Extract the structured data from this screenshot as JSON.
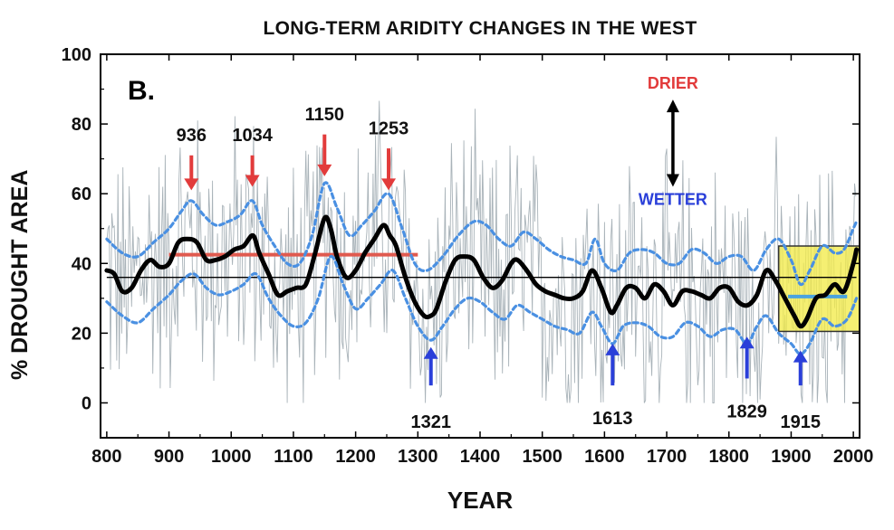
{
  "chart_data": {
    "type": "line",
    "title": "LONG-TERM ARIDITY CHANGES IN THE WEST",
    "panel_label": "B.",
    "xlabel": "YEAR",
    "ylabel": "% DROUGHT AREA",
    "xlim": [
      790,
      2010
    ],
    "ylim": [
      -10,
      100
    ],
    "x_ticks": [
      800,
      900,
      1000,
      1100,
      1200,
      1300,
      1400,
      1500,
      1600,
      1700,
      1800,
      1900,
      2000
    ],
    "y_ticks": [
      0,
      20,
      40,
      60,
      80,
      100
    ],
    "grid": false,
    "series": [
      {
        "role": "smoothed",
        "color": "#000000",
        "x": [
          800,
          812,
          825,
          840,
          855,
          870,
          885,
          900,
          915,
          930,
          945,
          960,
          975,
          990,
          1005,
          1020,
          1035,
          1045,
          1060,
          1075,
          1090,
          1105,
          1120,
          1135,
          1150,
          1160,
          1170,
          1185,
          1200,
          1215,
          1230,
          1245,
          1255,
          1265,
          1280,
          1295,
          1310,
          1321,
          1330,
          1345,
          1360,
          1375,
          1390,
          1405,
          1420,
          1435,
          1450,
          1460,
          1475,
          1490,
          1505,
          1520,
          1535,
          1550,
          1565,
          1580,
          1595,
          1610,
          1620,
          1635,
          1650,
          1665,
          1680,
          1695,
          1710,
          1725,
          1740,
          1755,
          1770,
          1785,
          1800,
          1815,
          1830,
          1845,
          1860,
          1875,
          1890,
          1905,
          1915,
          1925,
          1940,
          1955,
          1970,
          1985,
          2000,
          2005
        ],
        "y": [
          38,
          37,
          32,
          33,
          38,
          41,
          39,
          40,
          46,
          47,
          46,
          41,
          41,
          42,
          44,
          45,
          48,
          43,
          37,
          31,
          32,
          33,
          34,
          43,
          53,
          50,
          42,
          36,
          38,
          43,
          47,
          51,
          48,
          45,
          36,
          29,
          25,
          25,
          27,
          35,
          41,
          42,
          41,
          36,
          33,
          35,
          40,
          41,
          38,
          34,
          32,
          31,
          30,
          30,
          32,
          38,
          33,
          26,
          28,
          33,
          33,
          30,
          34,
          32,
          28,
          32,
          32,
          31,
          30,
          33,
          33,
          29,
          28,
          31,
          38,
          35,
          30,
          25,
          22,
          24,
          30,
          31,
          34,
          32,
          40,
          44
        ]
      },
      {
        "role": "upper-band",
        "color": "#4a90e2",
        "x": [
          800,
          825,
          850,
          875,
          900,
          920,
          936,
          955,
          975,
          995,
          1015,
          1034,
          1050,
          1070,
          1090,
          1110,
          1130,
          1150,
          1170,
          1190,
          1210,
          1230,
          1253,
          1275,
          1295,
          1315,
          1340,
          1365,
          1390,
          1410,
          1430,
          1450,
          1470,
          1490,
          1510,
          1530,
          1550,
          1570,
          1585,
          1600,
          1620,
          1640,
          1660,
          1680,
          1700,
          1720,
          1740,
          1760,
          1780,
          1800,
          1820,
          1840,
          1860,
          1880,
          1900,
          1915,
          1930,
          1950,
          1970,
          1985,
          2000,
          2005
        ],
        "y": [
          47,
          43,
          42,
          46,
          50,
          55,
          58,
          54,
          51,
          52,
          54,
          58,
          51,
          45,
          40,
          40,
          48,
          63,
          56,
          48,
          51,
          55,
          60,
          50,
          40,
          38,
          42,
          48,
          52,
          51,
          47,
          45,
          49,
          47,
          44,
          42,
          41,
          40,
          47,
          40,
          38,
          43,
          44,
          43,
          40,
          40,
          44,
          43,
          40,
          42,
          42,
          38,
          44,
          47,
          41,
          34,
          38,
          45,
          43,
          44,
          50,
          52
        ]
      },
      {
        "role": "lower-band",
        "color": "#4a90e2",
        "x": [
          800,
          825,
          850,
          875,
          900,
          920,
          940,
          960,
          980,
          1000,
          1020,
          1040,
          1060,
          1080,
          1100,
          1120,
          1140,
          1160,
          1180,
          1200,
          1220,
          1240,
          1260,
          1280,
          1300,
          1321,
          1340,
          1360,
          1380,
          1400,
          1420,
          1440,
          1460,
          1480,
          1500,
          1520,
          1540,
          1560,
          1580,
          1595,
          1613,
          1630,
          1650,
          1670,
          1690,
          1710,
          1730,
          1750,
          1770,
          1790,
          1810,
          1829,
          1845,
          1860,
          1880,
          1900,
          1915,
          1930,
          1950,
          1970,
          1990,
          2005
        ],
        "y": [
          29,
          25,
          23,
          27,
          31,
          35,
          37,
          33,
          31,
          32,
          34,
          37,
          30,
          25,
          22,
          23,
          30,
          42,
          34,
          27,
          30,
          34,
          38,
          30,
          22,
          18,
          22,
          27,
          30,
          29,
          26,
          24,
          28,
          26,
          24,
          22,
          21,
          20,
          26,
          22,
          17,
          22,
          23,
          22,
          19,
          19,
          23,
          22,
          19,
          21,
          21,
          17,
          22,
          25,
          20,
          17,
          14,
          17,
          24,
          22,
          24,
          30
        ]
      }
    ],
    "noise_band": {
      "color": "#9aa6ad",
      "low": 0,
      "high": 88,
      "step_years": 2
    },
    "reference_lines": [
      {
        "name": "long-term-mean",
        "color": "#000000",
        "x": [
          800,
          2005
        ],
        "y": 36
      },
      {
        "name": "medieval-mean",
        "color": "#e05a4f",
        "x": [
          900,
          1300
        ],
        "y": 42.5
      },
      {
        "name": "modern-mean",
        "color": "#4aa3df",
        "x": [
          1895,
          1990
        ],
        "y": 30.5
      }
    ],
    "highlight": {
      "color": "#f2ea4a",
      "x": [
        1880,
        2010
      ],
      "y": [
        20.5,
        45
      ]
    },
    "axis_indicator": {
      "top_label": "DRIER",
      "top_color": "#e23b3b",
      "bottom_label": "WETTER",
      "bottom_color": "#2a3fd9",
      "x": 1710,
      "y_top": 87,
      "y_bottom": 62
    },
    "annotations": [
      {
        "label": "936",
        "x": 936,
        "direction": "down",
        "color": "#e23b3b",
        "arrow_from": 71,
        "arrow_to": 61,
        "label_y": 74
      },
      {
        "label": "1034",
        "x": 1034,
        "direction": "down",
        "color": "#e23b3b",
        "arrow_from": 71,
        "arrow_to": 62,
        "label_y": 74
      },
      {
        "label": "1150",
        "x": 1150,
        "direction": "down",
        "color": "#e23b3b",
        "arrow_from": 77,
        "arrow_to": 65,
        "label_y": 80
      },
      {
        "label": "1253",
        "x": 1253,
        "direction": "down",
        "color": "#e23b3b",
        "arrow_from": 73,
        "arrow_to": 61,
        "label_y": 76
      },
      {
        "label": "1321",
        "x": 1321,
        "direction": "up",
        "color": "#2a3fd9",
        "arrow_from": 5,
        "arrow_to": 16,
        "label_y": -3
      },
      {
        "label": "1613",
        "x": 1613,
        "direction": "up",
        "color": "#2a3fd9",
        "arrow_from": 5,
        "arrow_to": 17,
        "label_y": -2
      },
      {
        "label": "1829",
        "x": 1829,
        "direction": "up",
        "color": "#2a3fd9",
        "arrow_from": 7,
        "arrow_to": 19,
        "label_y": 0
      },
      {
        "label": "1915",
        "x": 1915,
        "direction": "up",
        "color": "#2a3fd9",
        "arrow_from": 5,
        "arrow_to": 15,
        "label_y": -3
      }
    ]
  }
}
